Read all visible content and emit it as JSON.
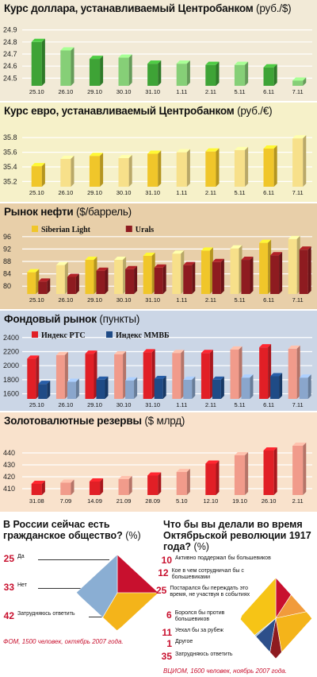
{
  "colors": {
    "panel1_bg": "#f2ead7",
    "panel2_bg": "#f6f1c9",
    "panel3_bg": "#e8cfa9",
    "panel4_bg": "#cbd6e6",
    "panel5_bg": "#f9e2cc",
    "green": "#3ea336",
    "green_light": "#86cf77",
    "yellow": "#f0c62a",
    "yellow_light": "#f7e08a",
    "darkred": "#8e1b20",
    "red": "#e11f26",
    "red_light": "#f19b8b",
    "blue": "#1f4b86",
    "blue_light": "#8aa6cc",
    "accent_red": "#c8102e"
  },
  "panels": [
    {
      "title": "Курс доллара, устанавливаемый Центробанком",
      "unit": "(руб./$)",
      "chart_data": {
        "type": "bar",
        "title": "Курс доллара, устанавливаемый Центробанком (руб./$)",
        "categories": [
          "25.10",
          "26.10",
          "29.10",
          "30.10",
          "31.10",
          "1.11",
          "2.11",
          "5.11",
          "6.11",
          "7.11"
        ],
        "series": [
          {
            "values": [
              24.8,
              24.73,
              24.66,
              24.67,
              24.62,
              24.62,
              24.61,
              24.61,
              24.59,
              24.48
            ]
          }
        ],
        "yticks": [
          "24.5",
          "24.6",
          "24.7",
          "24.8",
          "24.9"
        ],
        "ylim": [
          24.45,
          24.95
        ],
        "grid": true
      }
    },
    {
      "title": "Курс евро, устанавливаемый Центробанком",
      "unit": "(руб./€)",
      "chart_data": {
        "type": "bar",
        "title": "Курс евро, устанавливаемый Центробанком (руб./€)",
        "categories": [
          "25.10",
          "26.10",
          "29.10",
          "30.10",
          "31.10",
          "1.11",
          "2.11",
          "5.11",
          "6.11",
          "7.11"
        ],
        "series": [
          {
            "values": [
              35.41,
              35.51,
              35.55,
              35.52,
              35.58,
              35.6,
              35.61,
              35.63,
              35.65,
              35.79
            ]
          }
        ],
        "yticks": [
          "35.2",
          "35.4",
          "35.6",
          "35.8"
        ],
        "ylim": [
          35.15,
          35.9
        ],
        "grid": true
      }
    },
    {
      "title": "Рынок нефти",
      "unit": "($/баррель)",
      "chart_data": {
        "type": "bar",
        "title": "Рынок нефти ($/баррель)",
        "categories": [
          "25.10",
          "26.10",
          "29.10",
          "30.10",
          "31.10",
          "1.11",
          "2.11",
          "5.11",
          "6.11",
          "7.11"
        ],
        "series": [
          {
            "name": "Siberian Light",
            "values": [
              84.5,
              86.8,
              88.5,
              88.5,
              89.8,
              90.5,
              91.5,
              92.2,
              94.0,
              95.2
            ]
          },
          {
            "name": "Urals",
            "values": [
              81.5,
              83.0,
              85.0,
              85.5,
              86.0,
              86.8,
              87.8,
              88.5,
              90.0,
              91.8
            ]
          }
        ],
        "yticks": [
          "80",
          "84",
          "88",
          "92",
          "96"
        ],
        "ylim": [
          78,
          98
        ],
        "legend": "top-left",
        "grid": true
      }
    },
    {
      "title": "Фондовый рынок",
      "unit": "(пункты)",
      "chart_data": {
        "type": "bar",
        "title": "Фондовый рынок (пункты)",
        "categories": [
          "25.10",
          "26.10",
          "29.10",
          "30.10",
          "31.10",
          "1.11",
          "2.11",
          "5.11",
          "6.11",
          "7.11"
        ],
        "series": [
          {
            "name": "Индекс РТС",
            "values": [
              2100,
              2150,
              2170,
              2160,
              2190,
              2180,
              2180,
              2230,
              2260,
              2240
            ]
          },
          {
            "name": "Индекс ММВБ",
            "values": [
              1740,
              1770,
              1800,
              1790,
              1810,
              1800,
              1800,
              1830,
              1850,
              1830
            ]
          }
        ],
        "yticks": [
          "1600",
          "1800",
          "2000",
          "2200",
          "2400"
        ],
        "ylim": [
          1550,
          2420
        ],
        "legend": "top-left",
        "grid": true
      }
    },
    {
      "title": "Золотовалютные резервы",
      "unit": "($ млрд)",
      "chart_data": {
        "type": "bar",
        "title": "Золотовалютные резервы ($ млрд)",
        "categories": [
          "31.08",
          "7.09",
          "14.09",
          "21.09",
          "28.09",
          "5.10",
          "12.10",
          "19.10",
          "26.10",
          "2.11"
        ],
        "series": [
          {
            "values": [
              414,
              415,
              416,
              418,
              421,
              424,
              431,
              438,
              442,
              446
            ]
          }
        ],
        "yticks": [
          "410",
          "420",
          "430",
          "440"
        ],
        "ylim": [
          406,
          452
        ],
        "grid": true
      }
    }
  ],
  "poll1": {
    "title": "В России сейчас есть гражданское общество?",
    "unit": "(%)",
    "answers": [
      {
        "pct": "25",
        "label": "Да"
      },
      {
        "pct": "33",
        "label": "Нет"
      },
      {
        "pct": "42",
        "label": "Затрудняюсь ответить"
      }
    ],
    "slices": [
      25,
      33,
      42
    ],
    "source": "ФОМ, 1500 человек, октябрь 2007 года."
  },
  "poll2": {
    "title": "Что бы вы делали во время Октябрьской революции 1917 года?",
    "unit": "(%)",
    "answers": [
      {
        "pct": "10",
        "label": "Активно поддержал бы большевиков"
      },
      {
        "pct": "12",
        "label": "Кое в чем сотрудничал бы с большевиками"
      },
      {
        "pct": "25",
        "label": "Постарался бы переждать это время, не участвуя в событиях"
      },
      {
        "pct": "6",
        "label": "Боролся бы против большевиков"
      },
      {
        "pct": "11",
        "label": "Уехал бы за рубеж"
      },
      {
        "pct": "1",
        "label": "Другое"
      },
      {
        "pct": "35",
        "label": "Затрудняюсь ответить"
      }
    ],
    "slices": [
      10,
      12,
      25,
      6,
      11,
      1,
      35
    ],
    "source": "ВЦИОМ, 1600 человек, ноябрь 2007 года."
  }
}
